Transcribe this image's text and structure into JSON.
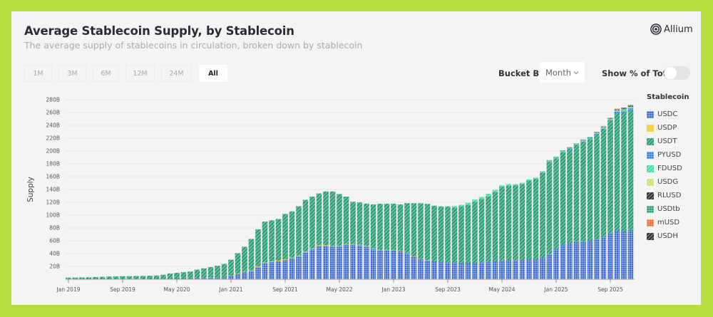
{
  "header": {
    "title": "Average Stablecoin Supply, by Stablecoin",
    "subtitle": "The average supply of stablecoins in circulation, broken down by stablecoin",
    "brand": "Allium"
  },
  "controls": {
    "ranges": [
      "1M",
      "3M",
      "6M",
      "12M",
      "24M",
      "All"
    ],
    "active_range": "All",
    "bucket_label": "Bucket By",
    "bucket_value": "Month",
    "percent_label": "Show % of Total",
    "percent_on": false
  },
  "chart_data": {
    "type": "bar",
    "stacked": true,
    "title": "Average Stablecoin Supply, by Stablecoin",
    "xlabel": "",
    "ylabel": "Supply",
    "ylim": [
      0,
      280
    ],
    "y_unit": "B",
    "y_ticks": [
      "20B",
      "40B",
      "60B",
      "80B",
      "100B",
      "120B",
      "140B",
      "160B",
      "180B",
      "200B",
      "220B",
      "240B",
      "260B",
      "280B"
    ],
    "x_ticks": [
      "Jan 2019",
      "Sep 2019",
      "May 2020",
      "Jan 2021",
      "Sep 2021",
      "May 2022",
      "Jan 2023",
      "Sep 2023",
      "May 2024",
      "Jan 2025",
      "Sep 2025"
    ],
    "x_start": "Jan 2019",
    "x_end": "Dec 2025",
    "x_interval": "month",
    "grid": true,
    "legend_title": "Stablecoin",
    "legend_position": "right",
    "series": [
      {
        "name": "USDC",
        "color": "#3e6bd0",
        "pattern": "grid",
        "values": [
          0.3,
          0.3,
          0.3,
          0.3,
          0.4,
          0.4,
          0.5,
          0.5,
          0.5,
          0.5,
          0.5,
          0.5,
          0.5,
          0.6,
          0.7,
          0.8,
          1,
          1.2,
          1.5,
          1.8,
          2,
          2.5,
          3,
          3.5,
          5,
          8,
          11,
          13,
          19,
          25,
          27,
          28,
          30,
          33,
          36,
          42,
          47,
          52,
          52,
          51,
          51,
          54,
          54,
          53,
          51,
          47,
          45,
          45,
          45,
          44,
          40,
          35,
          31,
          29,
          28,
          27,
          26,
          26,
          25,
          25,
          25,
          26,
          27,
          28,
          29,
          30,
          29,
          30,
          31,
          31,
          34,
          39,
          47,
          54,
          57,
          59,
          59,
          60,
          62,
          66,
          72,
          75,
          75,
          77
        ]
      },
      {
        "name": "USDP",
        "color": "#f2d64a",
        "pattern": "solid",
        "values": [
          0,
          0,
          0,
          0,
          0,
          0,
          0,
          0,
          0,
          0,
          0,
          0,
          0,
          0,
          0,
          0,
          0,
          0,
          0,
          0,
          0,
          0,
          0,
          0,
          0.5,
          0.6,
          0.7,
          0.8,
          0.8,
          0.9,
          0.9,
          0.9,
          0.9,
          0.9,
          0.9,
          0.9,
          0.9,
          0.9,
          0.9,
          0.9,
          0.9,
          0.9,
          0.9,
          0.9,
          0.9,
          0.8,
          0.8,
          0.8,
          0.8,
          0.7,
          0.6,
          0.6,
          0.5,
          0.5,
          0,
          0,
          0,
          0,
          0,
          0,
          0,
          0,
          0,
          0,
          0,
          0,
          0,
          0,
          0,
          0,
          0,
          0,
          0,
          0,
          0,
          0,
          0,
          0,
          0,
          0,
          0,
          0,
          0,
          0
        ]
      },
      {
        "name": "USDT",
        "color": "#2e9e76",
        "pattern": "stripe",
        "values": [
          2.2,
          2.3,
          2.5,
          2.7,
          3.0,
          3.4,
          3.7,
          4.0,
          4.2,
          4.3,
          4.5,
          4.7,
          5.0,
          5.2,
          6.3,
          8.2,
          9,
          9.8,
          10.5,
          13.2,
          15,
          16.5,
          18,
          20.5,
          25,
          32,
          39,
          49,
          58,
          64,
          64,
          65,
          71,
          72,
          77,
          81,
          81,
          81,
          84,
          85,
          81,
          74,
          66,
          66,
          66,
          69,
          72,
          72,
          72,
          72,
          78,
          83,
          87,
          88,
          86.7,
          86.5,
          87,
          86,
          88.5,
          91,
          96,
          99,
          102,
          108,
          115,
          116,
          117.5,
          118.5,
          122.5,
          125,
          132,
          144.2,
          141.7,
          144.5,
          146.3,
          150,
          155.7,
          158.5,
          164,
          168.5,
          175,
          184,
          185,
          186
        ]
      },
      {
        "name": "PYUSD",
        "color": "#2f7ff0",
        "pattern": "grid",
        "values": [
          0,
          0,
          0,
          0,
          0,
          0,
          0,
          0,
          0,
          0,
          0,
          0,
          0,
          0,
          0,
          0,
          0,
          0,
          0,
          0,
          0,
          0,
          0,
          0,
          0,
          0,
          0,
          0,
          0,
          0,
          0,
          0,
          0,
          0,
          0,
          0,
          0,
          0,
          0,
          0,
          0,
          0,
          0,
          0,
          0,
          0,
          0,
          0,
          0,
          0,
          0,
          0,
          0,
          0,
          0,
          0,
          0.1,
          0.1,
          0.2,
          0.3,
          0.3,
          0.3,
          0.3,
          0.4,
          0.4,
          0.4,
          0.4,
          0.5,
          0.6,
          0.6,
          0.5,
          0.5,
          0.5,
          0.6,
          0.7,
          0.8,
          0.9,
          0.9,
          1.0,
          1.1,
          1.3,
          2.5,
          3.0,
          3.5
        ]
      },
      {
        "name": "FDUSD",
        "color": "#3fe0a0",
        "pattern": "stripe",
        "values": [
          0,
          0,
          0,
          0,
          0,
          0,
          0,
          0,
          0,
          0,
          0,
          0,
          0,
          0,
          0,
          0,
          0,
          0,
          0,
          0,
          0,
          0,
          0,
          0,
          0,
          0,
          0,
          0,
          0,
          0,
          0,
          0,
          0,
          0,
          0,
          0,
          0,
          0,
          0,
          0,
          0,
          0,
          0,
          0,
          0,
          0,
          0,
          0,
          0,
          0,
          0,
          0,
          0,
          0,
          0.3,
          0.5,
          1,
          2,
          2.5,
          3,
          3,
          3,
          4,
          3,
          2,
          2,
          1.5,
          1.5,
          1.5,
          2,
          2,
          1.8,
          1.5,
          1.5,
          1.4,
          1.4,
          1.4,
          1.3,
          1.3,
          1.2,
          1.2,
          1.2,
          1.2,
          1.2
        ]
      },
      {
        "name": "USDG",
        "color": "#c6e26a",
        "pattern": "stripe",
        "values": [
          0,
          0,
          0,
          0,
          0,
          0,
          0,
          0,
          0,
          0,
          0,
          0,
          0,
          0,
          0,
          0,
          0,
          0,
          0,
          0,
          0,
          0,
          0,
          0,
          0,
          0,
          0,
          0,
          0,
          0,
          0,
          0,
          0,
          0,
          0,
          0,
          0,
          0,
          0,
          0,
          0,
          0,
          0,
          0,
          0,
          0,
          0,
          0,
          0,
          0,
          0,
          0,
          0,
          0,
          0,
          0,
          0,
          0,
          0,
          0,
          0,
          0,
          0,
          0,
          0,
          0,
          0,
          0,
          0,
          0,
          0,
          0,
          0,
          0,
          0,
          0,
          0,
          0,
          0.2,
          0.4,
          0.6,
          0.8,
          0.9,
          1.0
        ]
      },
      {
        "name": "RLUSD",
        "color": "#333333",
        "pattern": "stripe",
        "values": [
          0,
          0,
          0,
          0,
          0,
          0,
          0,
          0,
          0,
          0,
          0,
          0,
          0,
          0,
          0,
          0,
          0,
          0,
          0,
          0,
          0,
          0,
          0,
          0,
          0,
          0,
          0,
          0,
          0,
          0,
          0,
          0,
          0,
          0,
          0,
          0,
          0,
          0,
          0,
          0,
          0,
          0,
          0,
          0,
          0,
          0,
          0,
          0,
          0,
          0,
          0,
          0,
          0,
          0,
          0,
          0,
          0,
          0,
          0,
          0,
          0,
          0,
          0,
          0,
          0,
          0,
          0,
          0,
          0,
          0,
          0,
          0.1,
          0.1,
          0.1,
          0.2,
          0.3,
          0.4,
          0.5,
          0.6,
          0.7,
          0.8,
          0.9,
          1.0,
          1.1
        ]
      },
      {
        "name": "USDtb",
        "color": "#2aa07a",
        "pattern": "grid",
        "values": [
          0,
          0,
          0,
          0,
          0,
          0,
          0,
          0,
          0,
          0,
          0,
          0,
          0,
          0,
          0,
          0,
          0,
          0,
          0,
          0,
          0,
          0,
          0,
          0,
          0,
          0,
          0,
          0,
          0,
          0,
          0,
          0,
          0,
          0,
          0,
          0,
          0,
          0,
          0,
          0,
          0,
          0,
          0,
          0,
          0,
          0,
          0,
          0,
          0,
          0,
          0,
          0,
          0,
          0,
          0,
          0,
          0,
          0,
          0,
          0,
          0,
          0,
          0,
          0,
          0,
          0,
          0,
          0,
          0,
          0,
          0,
          0.1,
          0.2,
          0.3,
          0.4,
          0.5,
          0.6,
          0.8,
          0.9,
          1.1,
          1.1,
          1.4,
          1.5,
          1.7
        ]
      },
      {
        "name": "mUSD",
        "color": "#f26a2a",
        "pattern": "grid",
        "values": [
          0,
          0,
          0,
          0,
          0,
          0,
          0,
          0,
          0,
          0,
          0,
          0,
          0,
          0,
          0,
          0,
          0,
          0,
          0,
          0,
          0,
          0,
          0,
          0,
          0,
          0,
          0,
          0,
          0,
          0,
          0,
          0,
          0,
          0,
          0,
          0,
          0,
          0,
          0,
          0,
          0,
          0,
          0,
          0,
          0,
          0,
          0,
          0,
          0,
          0,
          0,
          0,
          0,
          0,
          0,
          0,
          0,
          0,
          0,
          0,
          0,
          0,
          0,
          0,
          0,
          0,
          0,
          0,
          0,
          0,
          0,
          0,
          0,
          0,
          0,
          0,
          0,
          0,
          0,
          0,
          0,
          0.1,
          0.1,
          0.1
        ]
      },
      {
        "name": "USDH",
        "color": "#333333",
        "pattern": "stripe",
        "values": [
          0,
          0,
          0,
          0,
          0,
          0,
          0,
          0,
          0,
          0,
          0,
          0,
          0,
          0,
          0,
          0,
          0,
          0,
          0,
          0,
          0,
          0,
          0,
          0,
          0,
          0,
          0,
          0,
          0,
          0,
          0,
          0,
          0,
          0,
          0,
          0,
          0,
          0,
          0,
          0,
          0,
          0,
          0,
          0,
          0,
          0,
          0,
          0,
          0,
          0,
          0,
          0,
          0,
          0,
          0,
          0,
          0,
          0,
          0,
          0,
          0,
          0,
          0,
          0,
          0,
          0,
          0,
          0,
          0,
          0,
          0,
          0,
          0,
          0,
          0,
          0,
          0,
          0,
          0,
          0,
          0,
          0,
          0.1,
          0.1
        ]
      }
    ]
  }
}
